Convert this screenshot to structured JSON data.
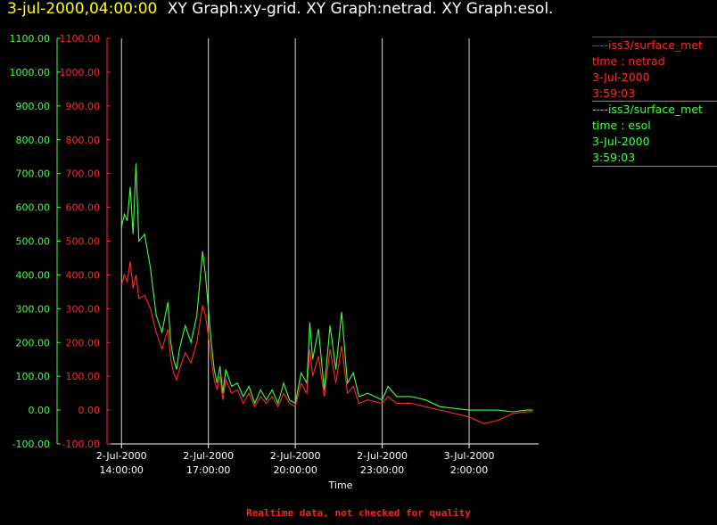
{
  "header": {
    "date_time": "3-jul-2000,04:00:00",
    "graphs_text": "XY Graph:xy-grid.  XY Graph:netrad.  XY Graph:esol."
  },
  "legend": [
    {
      "lines": [
        "----iss3/surface_met",
        "time : netrad",
        "3-Jul-2000",
        "3:59:03"
      ],
      "color": "#ff2a2a"
    },
    {
      "lines": [
        "----iss3/surface_met",
        "time : esol",
        "3-Jul-2000",
        "3:59:03"
      ],
      "color": "#44ff44"
    }
  ],
  "footer": "Realtime data, not checked for quality",
  "chart_data": {
    "type": "line",
    "xlabel": "Time",
    "x_ticks": [
      {
        "date": "2-Jul-2000",
        "time": "14:00:00",
        "hour": 14
      },
      {
        "date": "2-Jul-2000",
        "time": "17:00:00",
        "hour": 17
      },
      {
        "date": "2-Jul-2000",
        "time": "20:00:00",
        "hour": 20
      },
      {
        "date": "2-Jul-2000",
        "time": "23:00:00",
        "hour": 23
      },
      {
        "date": "3-Jul-2000",
        "time": "2:00:00",
        "hour": 26
      }
    ],
    "xlim_hours": [
      13.5,
      28.4
    ],
    "ylim": [
      -100,
      1100
    ],
    "y_ticks": [
      "-100.00",
      "0.00",
      "100.00",
      "200.00",
      "300.00",
      "400.00",
      "500.00",
      "600.00",
      "700.00",
      "800.00",
      "900.00",
      "1000.00",
      "1100.00"
    ],
    "grid": "vertical lines at x ticks",
    "series": [
      {
        "color": "#44ff44",
        "x_hours": [
          14.0,
          14.1,
          14.2,
          14.3,
          14.4,
          14.5,
          14.6,
          14.8,
          15.0,
          15.2,
          15.4,
          15.6,
          15.7,
          15.8,
          15.9,
          16.0,
          16.2,
          16.4,
          16.6,
          16.8,
          16.9,
          17.0,
          17.1,
          17.2,
          17.3,
          17.4,
          17.5,
          17.6,
          17.8,
          18.0,
          18.2,
          18.4,
          18.6,
          18.8,
          19.0,
          19.2,
          19.4,
          19.6,
          19.8,
          20.0,
          20.2,
          20.4,
          20.5,
          20.6,
          20.8,
          21.0,
          21.2,
          21.4,
          21.6,
          21.8,
          22.0,
          22.2,
          22.5,
          23.0,
          23.2,
          23.5,
          24.0,
          24.5,
          25.0,
          25.5,
          26.0,
          26.5,
          27.0,
          27.5,
          28.0,
          28.2
        ],
        "values": [
          540,
          580,
          560,
          660,
          520,
          730,
          500,
          520,
          420,
          280,
          230,
          320,
          200,
          150,
          120,
          180,
          250,
          200,
          280,
          470,
          400,
          300,
          200,
          120,
          80,
          130,
          50,
          120,
          70,
          80,
          40,
          70,
          20,
          60,
          30,
          60,
          20,
          80,
          30,
          20,
          110,
          80,
          260,
          150,
          240,
          60,
          250,
          120,
          290,
          80,
          110,
          40,
          50,
          30,
          70,
          40,
          40,
          30,
          10,
          5,
          0,
          0,
          0,
          -5,
          0,
          0
        ]
      },
      {
        "color": "#ff2a2a",
        "x_hours": [
          14.0,
          14.1,
          14.2,
          14.3,
          14.4,
          14.5,
          14.6,
          14.8,
          15.0,
          15.2,
          15.4,
          15.6,
          15.7,
          15.8,
          15.9,
          16.0,
          16.2,
          16.4,
          16.6,
          16.8,
          16.9,
          17.0,
          17.1,
          17.2,
          17.3,
          17.4,
          17.5,
          17.6,
          17.8,
          18.0,
          18.2,
          18.4,
          18.6,
          18.8,
          19.0,
          19.2,
          19.4,
          19.6,
          19.8,
          20.0,
          20.2,
          20.4,
          20.5,
          20.6,
          20.8,
          21.0,
          21.2,
          21.4,
          21.6,
          21.8,
          22.0,
          22.2,
          22.5,
          23.0,
          23.2,
          23.5,
          24.0,
          24.5,
          25.0,
          25.5,
          26.0,
          26.5,
          27.0,
          27.5,
          28.0,
          28.2
        ],
        "values": [
          370,
          400,
          380,
          440,
          360,
          400,
          330,
          340,
          300,
          230,
          180,
          240,
          150,
          110,
          90,
          120,
          170,
          140,
          200,
          310,
          280,
          220,
          150,
          90,
          60,
          100,
          30,
          90,
          50,
          60,
          20,
          50,
          10,
          40,
          20,
          40,
          10,
          50,
          20,
          10,
          80,
          50,
          180,
          100,
          160,
          40,
          180,
          80,
          190,
          50,
          70,
          20,
          30,
          20,
          40,
          20,
          20,
          10,
          0,
          -10,
          -20,
          -40,
          -30,
          -10,
          -5,
          -5
        ]
      }
    ]
  }
}
